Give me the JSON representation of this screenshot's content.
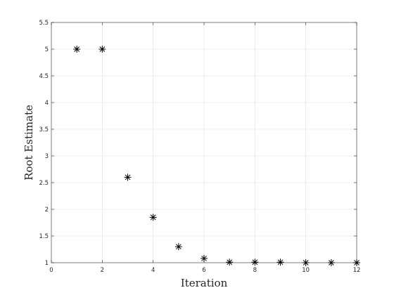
{
  "chart_data": {
    "type": "scatter",
    "title": "",
    "xlabel": "Iteration",
    "ylabel": "Root Estimate",
    "xlim": [
      0,
      12
    ],
    "ylim": [
      1,
      5.5
    ],
    "xticks": [
      0,
      2,
      4,
      6,
      8,
      10,
      12
    ],
    "yticks": [
      1,
      1.5,
      2,
      2.5,
      3,
      3.5,
      4,
      4.5,
      5,
      5.5
    ],
    "grid": true,
    "marker": "asterisk",
    "series": [
      {
        "x": [
          1,
          2,
          3,
          4,
          5,
          6,
          7,
          8,
          9,
          10,
          11,
          12
        ],
        "y": [
          5.0,
          5.0,
          2.6,
          1.85,
          1.3,
          1.08,
          1.01,
          1.01,
          1.01,
          1.0,
          1.0,
          1.0
        ]
      }
    ],
    "colors": {
      "marker": "#000000",
      "axis": "#262626",
      "grid": "#dfdfdf"
    }
  }
}
